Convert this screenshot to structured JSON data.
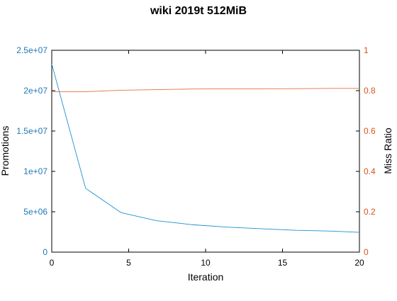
{
  "chart_data": {
    "type": "line",
    "title": "wiki 2019t 512MiB",
    "xlabel": "Iteration",
    "ylabel_left": "Promotions",
    "ylabel_right": "Miss Ratio",
    "xlim": [
      0,
      20
    ],
    "ylim_left": [
      0,
      25000000
    ],
    "ylim_right": [
      0,
      1
    ],
    "x_ticks": [
      {
        "value": 0,
        "label": "0"
      },
      {
        "value": 5,
        "label": "5"
      },
      {
        "value": 10,
        "label": "10"
      },
      {
        "value": 15,
        "label": "15"
      },
      {
        "value": 20,
        "label": "20"
      }
    ],
    "y_left_ticks": [
      {
        "value": 0,
        "label": "0"
      },
      {
        "value": 5000000,
        "label": "5e+06"
      },
      {
        "value": 10000000,
        "label": "1e+07"
      },
      {
        "value": 15000000,
        "label": "1.5e+07"
      },
      {
        "value": 20000000,
        "label": "2e+07"
      },
      {
        "value": 25000000,
        "label": "2.5e+07"
      }
    ],
    "y_right_ticks": [
      {
        "value": 0,
        "label": "0"
      },
      {
        "value": 0.2,
        "label": "0.2"
      },
      {
        "value": 0.4,
        "label": "0.4"
      },
      {
        "value": 0.6,
        "label": "0.6"
      },
      {
        "value": 0.8,
        "label": "0.8"
      },
      {
        "value": 1,
        "label": "1"
      }
    ],
    "grid": false,
    "left_axis_color": "#1f77b4",
    "right_axis_color": "#d95319",
    "series": [
      {
        "axis": "left",
        "color": "#1f8fcf",
        "points": [
          {
            "x": 0,
            "y": 23300000
          },
          {
            "x": 2.2,
            "y": 7900000
          },
          {
            "x": 4.5,
            "y": 4900000
          },
          {
            "x": 6.8,
            "y": 3900000
          },
          {
            "x": 9.1,
            "y": 3400000
          },
          {
            "x": 11.4,
            "y": 3100000
          },
          {
            "x": 13.6,
            "y": 2900000
          },
          {
            "x": 15.9,
            "y": 2700000
          },
          {
            "x": 18.2,
            "y": 2600000
          },
          {
            "x": 20,
            "y": 2450000
          }
        ]
      },
      {
        "axis": "right",
        "color": "#e2723c",
        "points": [
          {
            "x": 0,
            "y": 0.795
          },
          {
            "x": 2.2,
            "y": 0.795
          },
          {
            "x": 4.5,
            "y": 0.802
          },
          {
            "x": 6.8,
            "y": 0.805
          },
          {
            "x": 9.1,
            "y": 0.808
          },
          {
            "x": 11.4,
            "y": 0.809
          },
          {
            "x": 13.6,
            "y": 0.809
          },
          {
            "x": 15.9,
            "y": 0.81
          },
          {
            "x": 18.2,
            "y": 0.811
          },
          {
            "x": 20,
            "y": 0.811
          }
        ]
      }
    ]
  }
}
